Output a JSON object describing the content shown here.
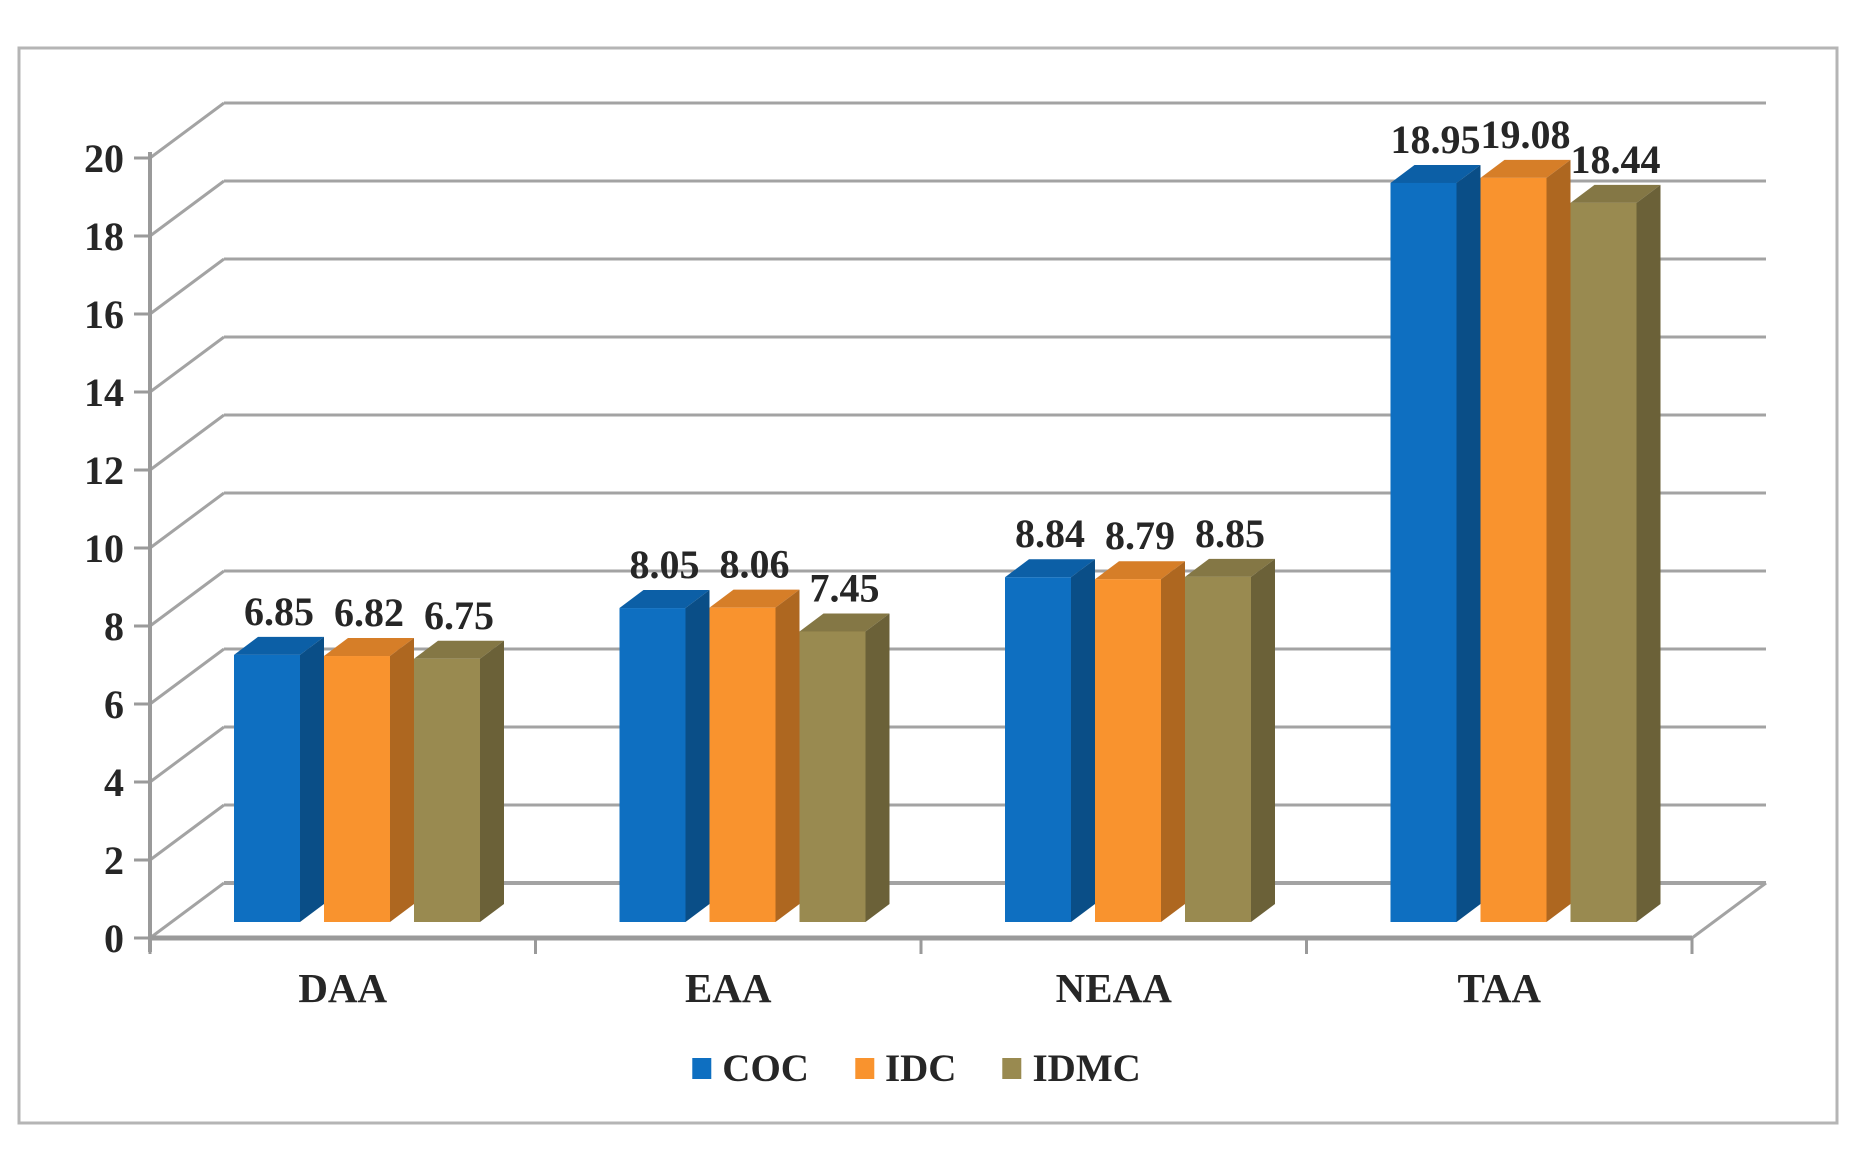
{
  "figure": {
    "kind": "3d-clustered-column-chart",
    "background": "#ffffff",
    "border_color": "#b5b5b5"
  },
  "chart_data": {
    "type": "bar",
    "projection": "3d",
    "title": "",
    "xlabel": "",
    "ylabel": "",
    "categories": [
      "DAA",
      "EAA",
      "NEAA",
      "TAA"
    ],
    "series": [
      {
        "name": "COC",
        "color": "#0e6fc1",
        "values": [
          6.85,
          8.05,
          8.84,
          18.95
        ]
      },
      {
        "name": "IDC",
        "color": "#f9932e",
        "values": [
          6.82,
          8.06,
          8.79,
          19.08
        ]
      },
      {
        "name": "IDMC",
        "color": "#998a50",
        "values": [
          6.75,
          7.45,
          8.85,
          18.44
        ]
      }
    ],
    "data_labels": true,
    "y_axis": {
      "min": 0,
      "max": 20,
      "step": 2,
      "tick_labels": [
        "0",
        "2",
        "4",
        "6",
        "8",
        "10",
        "12",
        "14",
        "16",
        "18",
        "20"
      ]
    },
    "legend": {
      "position": "bottom",
      "entries": [
        "COC",
        "IDC",
        "IDMC"
      ]
    },
    "grid": true,
    "colors": {
      "grid": "#a3a3a3",
      "axis": "#9a9a9a",
      "text": "#262626"
    }
  }
}
